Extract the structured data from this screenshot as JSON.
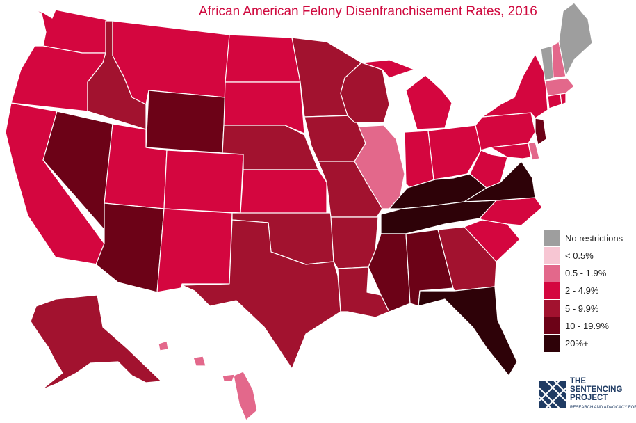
{
  "title": "African American Felony Disenfranchisement Rates, 2016",
  "colors": {
    "none": "#9e9e9e",
    "lt05": "#f7c6d3",
    "c05_19": "#e3688b",
    "c2_49": "#d4063f",
    "c5_99": "#a2122f",
    "c10_199": "#6c0217",
    "c20": "#2e0208"
  },
  "legend": [
    {
      "label": "No restrictions",
      "color": "#9e9e9e"
    },
    {
      "label": "< 0.5%",
      "color": "#f7c6d3"
    },
    {
      "label": "0.5 - 1.9%",
      "color": "#e3688b"
    },
    {
      "label": "2 - 4.9%",
      "color": "#d4063f"
    },
    {
      "label": "5 - 9.9%",
      "color": "#a2122f"
    },
    {
      "label": "10 - 19.9%",
      "color": "#6c0217"
    },
    {
      "label": "20%+",
      "color": "#2e0208"
    }
  ],
  "logo": {
    "line1": "THE",
    "line2": "SENTENCING",
    "line3": "PROJECT",
    "tagline": "RESEARCH AND ADVOCACY FOR REFORM"
  }
}
